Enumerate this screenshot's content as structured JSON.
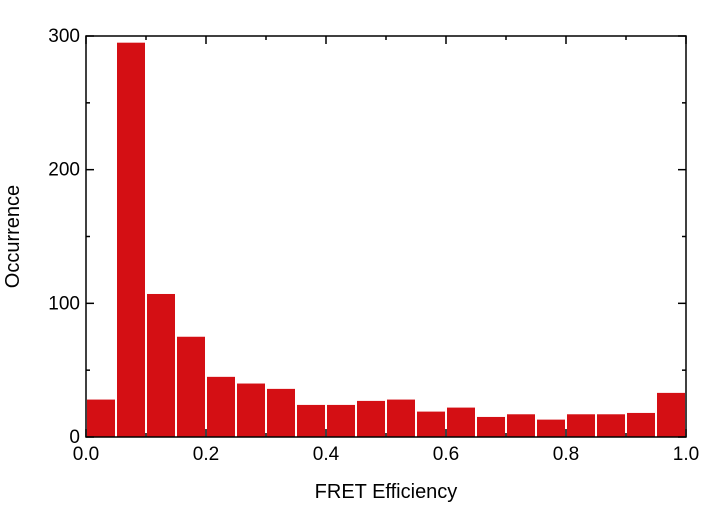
{
  "chart_data": {
    "type": "bar",
    "title": "",
    "xlabel": "FRET Efficiency",
    "ylabel": "Occurrence",
    "xlim": [
      0.0,
      1.0
    ],
    "ylim": [
      0,
      300
    ],
    "bin_width": 0.05,
    "bin_edges": [
      0.0,
      0.05,
      0.1,
      0.15,
      0.2,
      0.25,
      0.3,
      0.35,
      0.4,
      0.45,
      0.5,
      0.55,
      0.6,
      0.65,
      0.7,
      0.75,
      0.8,
      0.85,
      0.9,
      0.95,
      1.0
    ],
    "values": [
      28,
      295,
      107,
      75,
      45,
      40,
      36,
      24,
      24,
      27,
      28,
      19,
      22,
      15,
      17,
      13,
      17,
      17,
      18,
      33
    ],
    "x_ticks": [
      0.0,
      0.2,
      0.4,
      0.6,
      0.8,
      1.0
    ],
    "x_tick_labels": [
      "0.0",
      "0.2",
      "0.4",
      "0.6",
      "0.8",
      "1.0"
    ],
    "y_ticks": [
      0,
      100,
      200,
      300
    ],
    "y_tick_labels": [
      "0",
      "100",
      "200",
      "300"
    ],
    "bar_color": "#d40f14",
    "grid": false,
    "legend": "none"
  }
}
